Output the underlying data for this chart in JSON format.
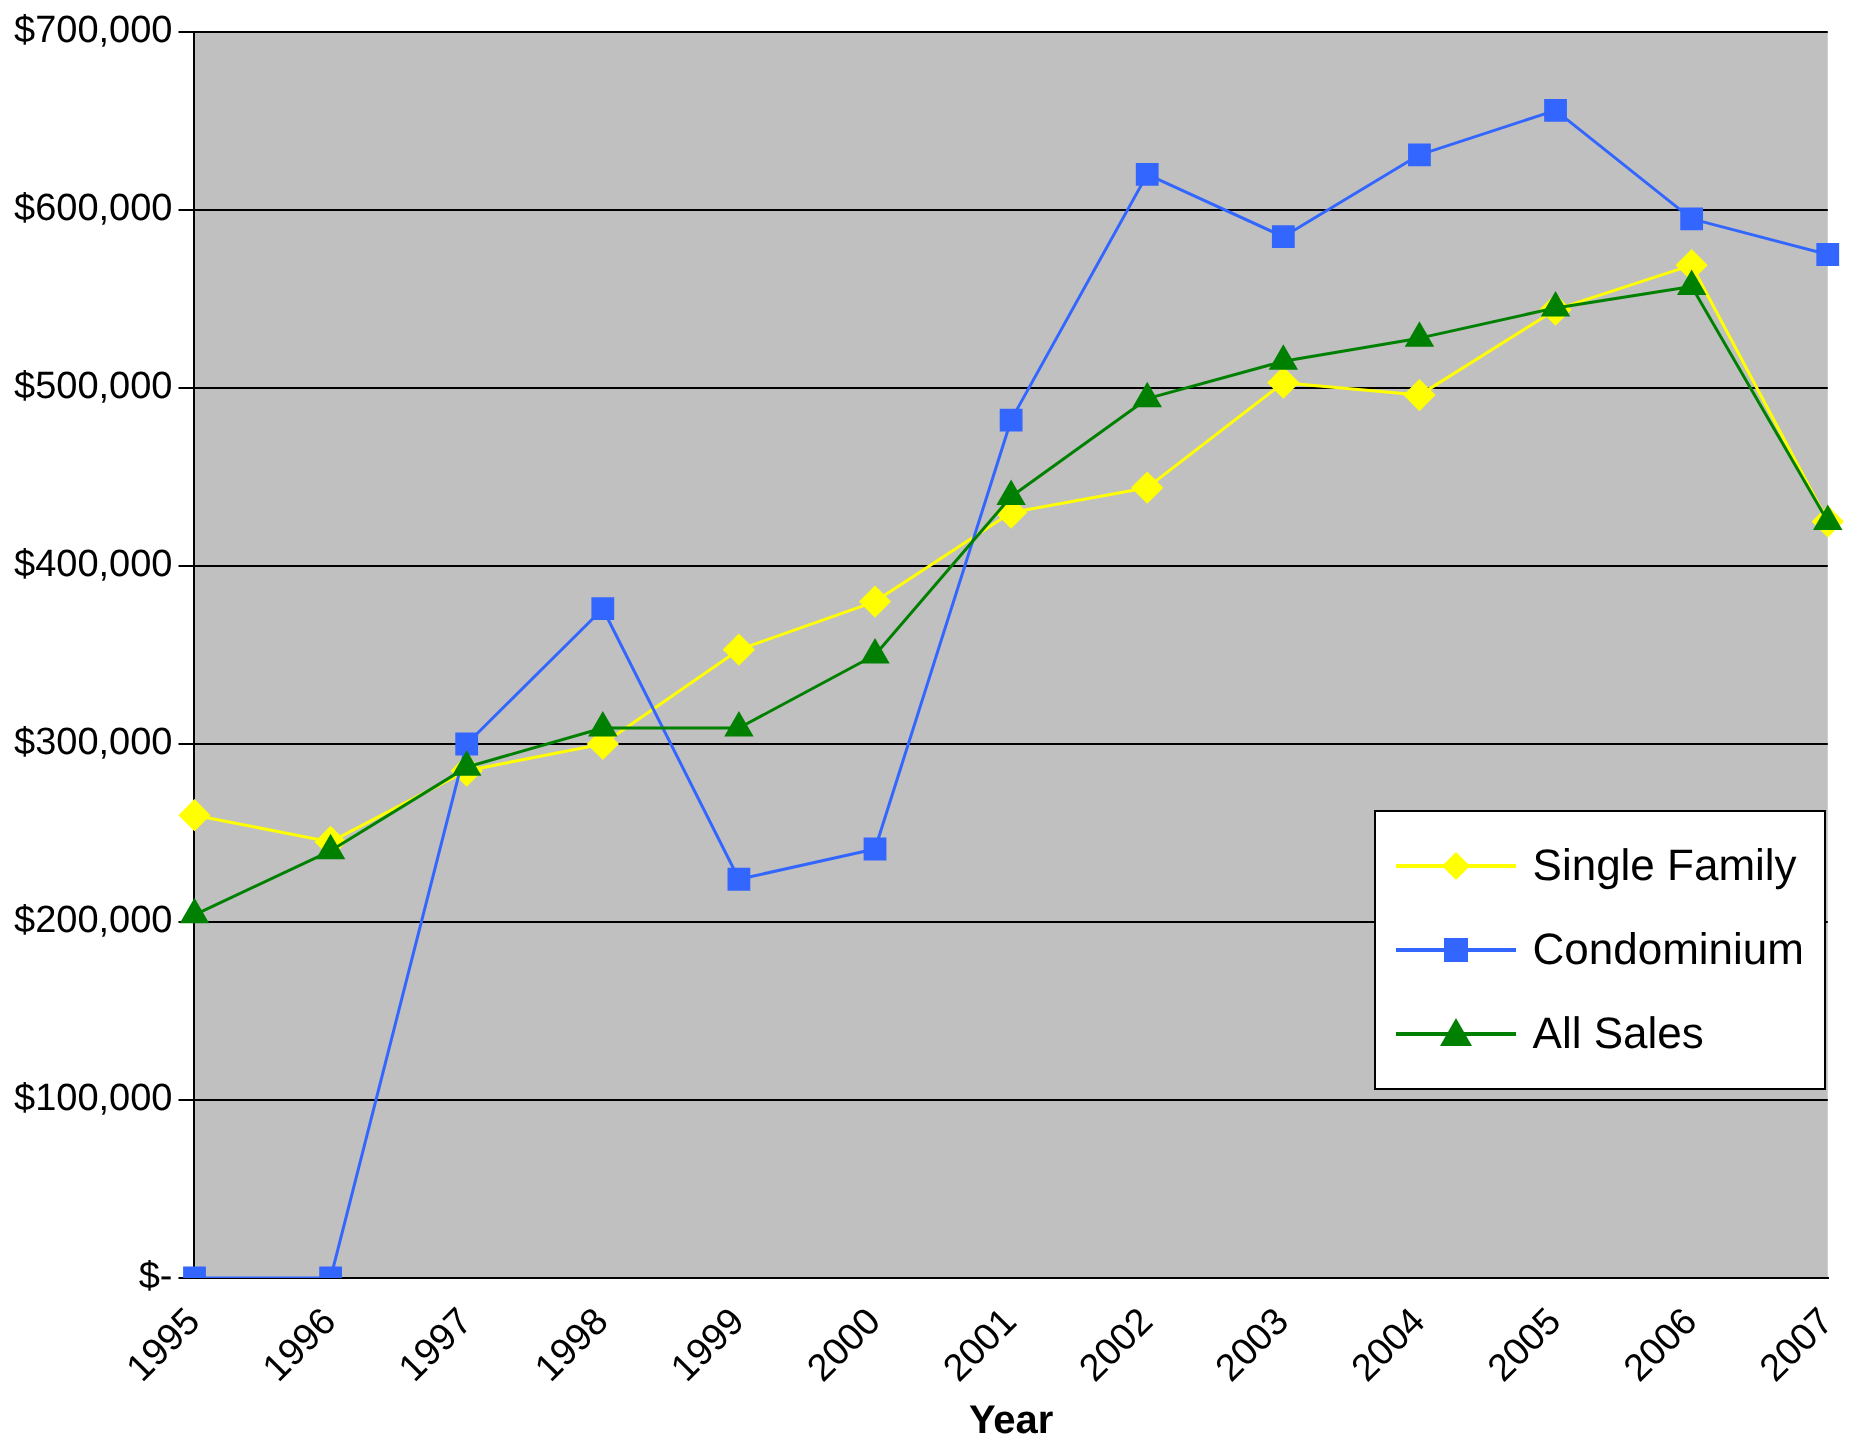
{
  "chart_data": {
    "type": "line",
    "xlabel": "Year",
    "categories": [
      "1995",
      "1996",
      "1997",
      "1998",
      "1999",
      "2000",
      "2001",
      "2002",
      "2003",
      "2004",
      "2005",
      "2006",
      "2007"
    ],
    "series": [
      {
        "name": "Single Family",
        "color": "#ffff00",
        "marker": "diamond",
        "values": [
          260000,
          245000,
          285000,
          300000,
          353000,
          380000,
          430000,
          444000,
          503000,
          496000,
          544000,
          569000,
          425000
        ]
      },
      {
        "name": "Condominium",
        "color": "#3366ff",
        "marker": "square",
        "values": [
          0,
          0,
          300000,
          376000,
          224000,
          241000,
          482000,
          620000,
          585000,
          631000,
          656000,
          595000,
          575000
        ]
      },
      {
        "name": "All Sales",
        "color": "#008000",
        "marker": "triangle",
        "values": [
          204000,
          240000,
          287000,
          309000,
          309000,
          350000,
          439000,
          494000,
          515000,
          528000,
          545000,
          557000,
          425000
        ]
      }
    ],
    "ylim": [
      0,
      700000
    ],
    "yticks": [
      {
        "value": 0,
        "label": "$-"
      },
      {
        "value": 100000,
        "label": "$100,000"
      },
      {
        "value": 200000,
        "label": "$200,000"
      },
      {
        "value": 300000,
        "label": "$300,000"
      },
      {
        "value": 400000,
        "label": "$400,000"
      },
      {
        "value": 500000,
        "label": "$500,000"
      },
      {
        "value": 600000,
        "label": "$600,000"
      },
      {
        "value": 700000,
        "label": "$700,000"
      }
    ],
    "grid": "y",
    "legend": "bottom right",
    "line_style": "solid"
  }
}
